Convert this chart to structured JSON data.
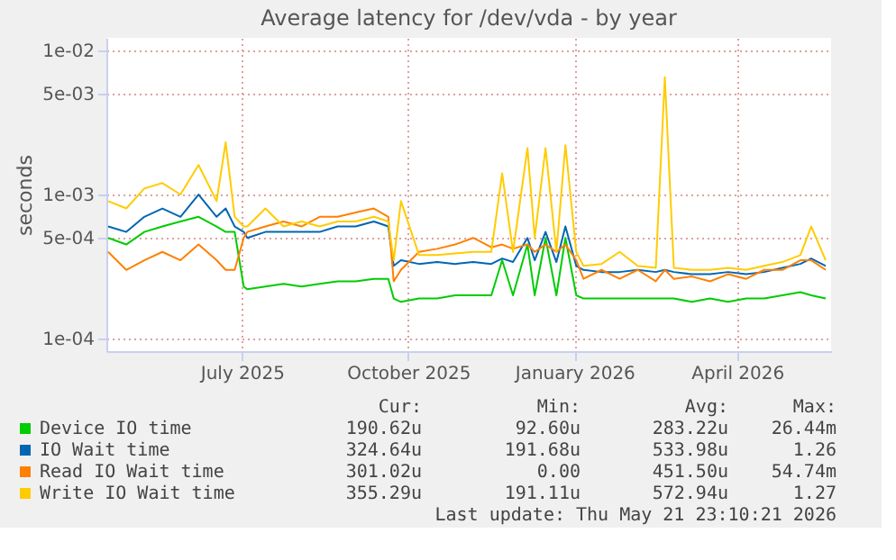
{
  "chart_data": {
    "type": "line",
    "title": "Average latency for /dev/vda - by year",
    "ylabel": "seconds",
    "x": [
      "2025-04-18",
      "2025-04-28",
      "2025-05-08",
      "2025-05-18",
      "2025-05-28",
      "2025-06-07",
      "2025-06-17",
      "2025-06-22",
      "2025-06-27",
      "2025-07-02",
      "2025-07-04",
      "2025-07-14",
      "2025-07-24",
      "2025-08-03",
      "2025-08-13",
      "2025-08-23",
      "2025-09-02",
      "2025-09-12",
      "2025-09-20",
      "2025-09-23",
      "2025-09-27",
      "2025-10-07",
      "2025-10-17",
      "2025-10-27",
      "2025-11-06",
      "2025-11-16",
      "2025-11-22",
      "2025-11-28",
      "2025-12-06",
      "2025-12-10",
      "2025-12-16",
      "2025-12-22",
      "2025-12-27",
      "2026-01-02",
      "2026-01-06",
      "2026-01-16",
      "2026-01-26",
      "2026-02-05",
      "2026-02-15",
      "2026-02-20",
      "2026-02-25",
      "2026-03-07",
      "2026-03-17",
      "2026-03-27",
      "2026-04-06",
      "2026-04-16",
      "2026-04-26",
      "2026-05-06",
      "2026-05-12",
      "2026-05-20"
    ],
    "series": [
      {
        "name": "Device IO time",
        "color": "#00cc00",
        "values": [
          0.0005,
          0.00045,
          0.00055,
          0.0006,
          0.00065,
          0.0007,
          0.0006,
          0.00055,
          0.00055,
          0.00023,
          0.00022,
          0.00023,
          0.00024,
          0.00023,
          0.00024,
          0.00025,
          0.00025,
          0.00026,
          0.00026,
          0.00019,
          0.00018,
          0.00019,
          0.00019,
          0.0002,
          0.0002,
          0.0002,
          0.00035,
          0.0002,
          0.00045,
          0.0002,
          0.0005,
          0.0002,
          0.0005,
          0.0002,
          0.00019,
          0.00019,
          0.00019,
          0.00019,
          0.00019,
          0.00019,
          0.00019,
          0.00018,
          0.00019,
          0.00018,
          0.00019,
          0.00019,
          0.0002,
          0.00021,
          0.0002,
          0.00019
        ]
      },
      {
        "name": "IO Wait time",
        "color": "#0066b3",
        "values": [
          0.0006,
          0.00055,
          0.0007,
          0.0008,
          0.0007,
          0.001,
          0.0007,
          0.0008,
          0.0006,
          0.00055,
          0.0005,
          0.00055,
          0.00055,
          0.00055,
          0.00055,
          0.0006,
          0.0006,
          0.00065,
          0.0006,
          0.00032,
          0.00035,
          0.00033,
          0.00034,
          0.00033,
          0.00034,
          0.00033,
          0.00036,
          0.00034,
          0.0005,
          0.00035,
          0.00055,
          0.00034,
          0.0006,
          0.00032,
          0.0003,
          0.00029,
          0.00029,
          0.0003,
          0.00029,
          0.0003,
          0.00029,
          0.00028,
          0.00028,
          0.00029,
          0.00028,
          0.00029,
          0.00031,
          0.00033,
          0.00036,
          0.00032
        ]
      },
      {
        "name": "Read IO Wait time",
        "color": "#ff8000",
        "values": [
          0.0004,
          0.0003,
          0.00035,
          0.0004,
          0.00035,
          0.00045,
          0.00035,
          0.0003,
          0.0003,
          0.0005,
          0.00055,
          0.0006,
          0.00065,
          0.0006,
          0.0007,
          0.0007,
          0.00075,
          0.0008,
          0.0007,
          0.00025,
          0.0003,
          0.0004,
          0.00042,
          0.00045,
          0.0005,
          0.00043,
          0.00045,
          0.00042,
          0.00045,
          0.0004,
          0.00045,
          0.0004,
          0.00045,
          0.00035,
          0.00026,
          0.0003,
          0.00026,
          0.0003,
          0.00025,
          0.0003,
          0.00026,
          0.00027,
          0.00025,
          0.00028,
          0.00026,
          0.0003,
          0.0003,
          0.00035,
          0.00035,
          0.0003
        ]
      },
      {
        "name": "Write IO Wait time",
        "color": "#ffcc00",
        "values": [
          0.0009,
          0.0008,
          0.0011,
          0.0012,
          0.001,
          0.0016,
          0.0009,
          0.0023,
          0.0007,
          0.0006,
          0.0006,
          0.0008,
          0.0006,
          0.00065,
          0.0006,
          0.00065,
          0.00065,
          0.0007,
          0.00065,
          0.00035,
          0.0009,
          0.00038,
          0.00038,
          0.00039,
          0.0004,
          0.0004,
          0.0014,
          0.0004,
          0.0021,
          0.0005,
          0.0021,
          0.0004,
          0.0022,
          0.0004,
          0.00032,
          0.00033,
          0.0004,
          0.00032,
          0.00031,
          0.0065,
          0.00031,
          0.0003,
          0.0003,
          0.00031,
          0.0003,
          0.00032,
          0.00034,
          0.00038,
          0.0006,
          0.00035
        ]
      }
    ],
    "log": true,
    "ylim": [
      8.2e-05,
      0.0122
    ],
    "yticks": [
      {
        "value": 0.0001,
        "label": "1e-04"
      },
      {
        "value": 0.0005,
        "label": "5e-04"
      },
      {
        "value": 0.001,
        "label": "1e-03"
      },
      {
        "value": 0.005,
        "label": "5e-03"
      },
      {
        "value": 0.01,
        "label": "1e-02"
      }
    ],
    "xlim": [
      "2025-04-17",
      "2026-05-23"
    ],
    "xticks": [
      {
        "value": "2025-07-01",
        "label": "July 2025"
      },
      {
        "value": "2025-10-01",
        "label": "October 2025"
      },
      {
        "value": "2026-01-01",
        "label": "January 2026"
      },
      {
        "value": "2026-04-01",
        "label": "April 2026"
      }
    ],
    "grid": true,
    "legend": "bottom",
    "marker": "none",
    "line_style": "solid",
    "annotations": [
      "Cur:",
      "Min:",
      "Avg:",
      "Max:",
      "190.62u",
      "92.60u",
      "283.22u",
      "26.44m",
      "324.64u",
      "191.68u",
      "533.98u",
      "1.26",
      "301.02u",
      "0.00",
      "451.50u",
      "54.74m",
      "355.29u",
      "191.11u",
      "572.94u",
      "1.27",
      "Last update: Thu May 21 23:10:21 2026"
    ]
  }
}
